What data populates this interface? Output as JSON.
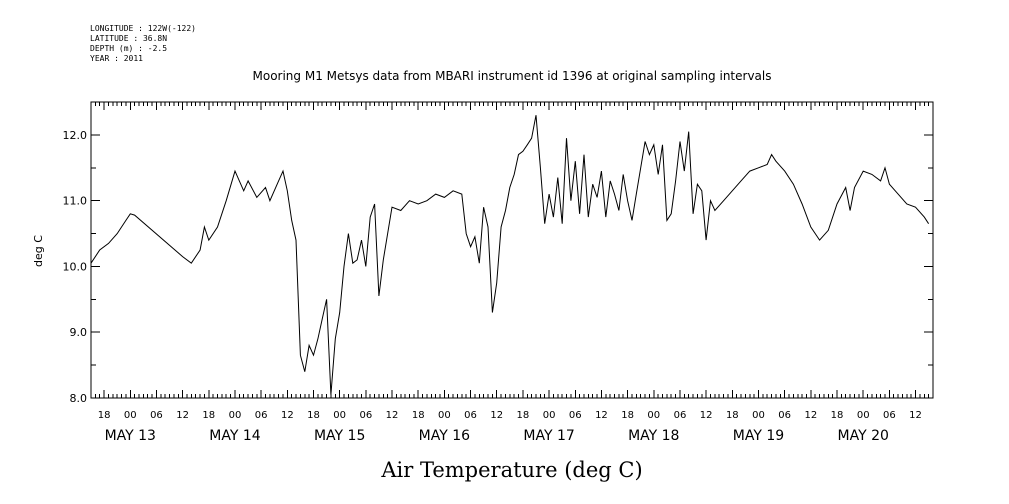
{
  "header": {
    "longitude": "LONGITUDE : 122W(-122)",
    "latitude": "LATITUDE : 36.8N",
    "depth": "DEPTH (m) : -2.5",
    "year": "YEAR : 2011"
  },
  "chart_data": {
    "type": "line",
    "title": "Mooring M1 Metsys data from MBARI instrument id 1396 at original sampling intervals",
    "xlabel": "Air Temperature (deg C)",
    "ylabel": "deg C",
    "ylim": [
      8.0,
      12.5
    ],
    "xlim": [
      "2011-05-12T15:00",
      "2011-05-20T16:00"
    ],
    "y_ticks": [
      "8.0",
      "9.0",
      "10.0",
      "11.0",
      "12.0"
    ],
    "x_hour_ticks": [
      {
        "t": "2011-05-12T18:00",
        "label": "18"
      },
      {
        "t": "2011-05-13T00:00",
        "label": "00"
      },
      {
        "t": "2011-05-13T06:00",
        "label": "06"
      },
      {
        "t": "2011-05-13T12:00",
        "label": "12"
      },
      {
        "t": "2011-05-13T18:00",
        "label": "18"
      },
      {
        "t": "2011-05-14T00:00",
        "label": "00"
      },
      {
        "t": "2011-05-14T06:00",
        "label": "06"
      },
      {
        "t": "2011-05-14T12:00",
        "label": "12"
      },
      {
        "t": "2011-05-14T18:00",
        "label": "18"
      },
      {
        "t": "2011-05-15T00:00",
        "label": "00"
      },
      {
        "t": "2011-05-15T06:00",
        "label": "06"
      },
      {
        "t": "2011-05-15T12:00",
        "label": "12"
      },
      {
        "t": "2011-05-15T18:00",
        "label": "18"
      },
      {
        "t": "2011-05-16T00:00",
        "label": "00"
      },
      {
        "t": "2011-05-16T06:00",
        "label": "06"
      },
      {
        "t": "2011-05-16T12:00",
        "label": "12"
      },
      {
        "t": "2011-05-16T18:00",
        "label": "18"
      },
      {
        "t": "2011-05-17T00:00",
        "label": "00"
      },
      {
        "t": "2011-05-17T06:00",
        "label": "06"
      },
      {
        "t": "2011-05-17T12:00",
        "label": "12"
      },
      {
        "t": "2011-05-17T18:00",
        "label": "18"
      },
      {
        "t": "2011-05-18T00:00",
        "label": "00"
      },
      {
        "t": "2011-05-18T06:00",
        "label": "06"
      },
      {
        "t": "2011-05-18T12:00",
        "label": "12"
      },
      {
        "t": "2011-05-18T18:00",
        "label": "18"
      },
      {
        "t": "2011-05-19T00:00",
        "label": "00"
      },
      {
        "t": "2011-05-19T06:00",
        "label": "06"
      },
      {
        "t": "2011-05-19T12:00",
        "label": "12"
      },
      {
        "t": "2011-05-19T18:00",
        "label": "18"
      },
      {
        "t": "2011-05-20T00:00",
        "label": "00"
      },
      {
        "t": "2011-05-20T06:00",
        "label": "06"
      },
      {
        "t": "2011-05-20T12:00",
        "label": "12"
      }
    ],
    "x_day_labels": [
      {
        "t": "2011-05-13T00:00",
        "label": "MAY 13"
      },
      {
        "t": "2011-05-14T00:00",
        "label": "MAY 14"
      },
      {
        "t": "2011-05-15T00:00",
        "label": "MAY 15"
      },
      {
        "t": "2011-05-16T00:00",
        "label": "MAY 16"
      },
      {
        "t": "2011-05-17T00:00",
        "label": "MAY 17"
      },
      {
        "t": "2011-05-18T00:00",
        "label": "MAY 18"
      },
      {
        "t": "2011-05-19T00:00",
        "label": "MAY 19"
      },
      {
        "t": "2011-05-20T00:00",
        "label": "MAY 20"
      }
    ],
    "grid": false,
    "series": [
      {
        "color": "#000000",
        "points": [
          [
            "2011-05-12T15:00",
            10.05
          ],
          [
            "2011-05-12T17:00",
            10.25
          ],
          [
            "2011-05-12T19:00",
            10.35
          ],
          [
            "2011-05-12T21:00",
            10.5
          ],
          [
            "2011-05-12T23:00",
            10.7
          ],
          [
            "2011-05-13T00:00",
            10.8
          ],
          [
            "2011-05-13T01:00",
            10.78
          ],
          [
            "2011-05-13T12:00",
            10.15
          ],
          [
            "2011-05-13T14:00",
            10.05
          ],
          [
            "2011-05-13T16:00",
            10.25
          ],
          [
            "2011-05-13T17:00",
            10.6
          ],
          [
            "2011-05-13T18:00",
            10.4
          ],
          [
            "2011-05-13T20:00",
            10.6
          ],
          [
            "2011-05-13T22:00",
            11.0
          ],
          [
            "2011-05-14T00:00",
            11.45
          ],
          [
            "2011-05-14T02:00",
            11.15
          ],
          [
            "2011-05-14T03:00",
            11.3
          ],
          [
            "2011-05-14T05:00",
            11.05
          ],
          [
            "2011-05-14T07:00",
            11.2
          ],
          [
            "2011-05-14T08:00",
            11.0
          ],
          [
            "2011-05-14T10:00",
            11.3
          ],
          [
            "2011-05-14T11:00",
            11.45
          ],
          [
            "2011-05-14T12:00",
            11.15
          ],
          [
            "2011-05-14T13:00",
            10.7
          ],
          [
            "2011-05-14T14:00",
            10.4
          ],
          [
            "2011-05-14T15:00",
            8.65
          ],
          [
            "2011-05-14T16:00",
            8.4
          ],
          [
            "2011-05-14T17:00",
            8.8
          ],
          [
            "2011-05-14T18:00",
            8.65
          ],
          [
            "2011-05-14T19:00",
            8.9
          ],
          [
            "2011-05-14T20:00",
            9.2
          ],
          [
            "2011-05-14T21:00",
            9.5
          ],
          [
            "2011-05-14T22:00",
            8.05
          ],
          [
            "2011-05-14T23:00",
            8.9
          ],
          [
            "2011-05-15T00:00",
            9.3
          ],
          [
            "2011-05-15T01:00",
            10.0
          ],
          [
            "2011-05-15T02:00",
            10.5
          ],
          [
            "2011-05-15T03:00",
            10.05
          ],
          [
            "2011-05-15T04:00",
            10.1
          ],
          [
            "2011-05-15T05:00",
            10.4
          ],
          [
            "2011-05-15T06:00",
            10.0
          ],
          [
            "2011-05-15T07:00",
            10.75
          ],
          [
            "2011-05-15T08:00",
            10.95
          ],
          [
            "2011-05-15T09:00",
            9.55
          ],
          [
            "2011-05-15T10:00",
            10.1
          ],
          [
            "2011-05-15T12:00",
            10.9
          ],
          [
            "2011-05-15T14:00",
            10.85
          ],
          [
            "2011-05-15T16:00",
            11.0
          ],
          [
            "2011-05-15T18:00",
            10.95
          ],
          [
            "2011-05-15T20:00",
            11.0
          ],
          [
            "2011-05-15T22:00",
            11.1
          ],
          [
            "2011-05-16T00:00",
            11.05
          ],
          [
            "2011-05-16T02:00",
            11.15
          ],
          [
            "2011-05-16T04:00",
            11.1
          ],
          [
            "2011-05-16T05:00",
            10.5
          ],
          [
            "2011-05-16T06:00",
            10.3
          ],
          [
            "2011-05-16T07:00",
            10.45
          ],
          [
            "2011-05-16T08:00",
            10.05
          ],
          [
            "2011-05-16T09:00",
            10.9
          ],
          [
            "2011-05-16T10:00",
            10.6
          ],
          [
            "2011-05-16T11:00",
            9.3
          ],
          [
            "2011-05-16T12:00",
            9.75
          ],
          [
            "2011-05-16T13:00",
            10.6
          ],
          [
            "2011-05-16T14:00",
            10.85
          ],
          [
            "2011-05-16T15:00",
            11.2
          ],
          [
            "2011-05-16T16:00",
            11.4
          ],
          [
            "2011-05-16T17:00",
            11.7
          ],
          [
            "2011-05-16T18:00",
            11.75
          ],
          [
            "2011-05-16T19:00",
            11.85
          ],
          [
            "2011-05-16T20:00",
            11.95
          ],
          [
            "2011-05-16T21:00",
            12.3
          ],
          [
            "2011-05-16T22:00",
            11.5
          ],
          [
            "2011-05-16T23:00",
            10.65
          ],
          [
            "2011-05-17T00:00",
            11.1
          ],
          [
            "2011-05-17T01:00",
            10.75
          ],
          [
            "2011-05-17T02:00",
            11.35
          ],
          [
            "2011-05-17T03:00",
            10.65
          ],
          [
            "2011-05-17T04:00",
            11.95
          ],
          [
            "2011-05-17T05:00",
            11.0
          ],
          [
            "2011-05-17T06:00",
            11.6
          ],
          [
            "2011-05-17T07:00",
            10.8
          ],
          [
            "2011-05-17T08:00",
            11.7
          ],
          [
            "2011-05-17T09:00",
            10.75
          ],
          [
            "2011-05-17T10:00",
            11.25
          ],
          [
            "2011-05-17T11:00",
            11.05
          ],
          [
            "2011-05-17T12:00",
            11.45
          ],
          [
            "2011-05-17T13:00",
            10.75
          ],
          [
            "2011-05-17T14:00",
            11.3
          ],
          [
            "2011-05-17T15:00",
            11.1
          ],
          [
            "2011-05-17T16:00",
            10.85
          ],
          [
            "2011-05-17T17:00",
            11.4
          ],
          [
            "2011-05-17T18:00",
            11.0
          ],
          [
            "2011-05-17T19:00",
            10.7
          ],
          [
            "2011-05-17T20:00",
            11.1
          ],
          [
            "2011-05-17T21:00",
            11.5
          ],
          [
            "2011-05-17T22:00",
            11.9
          ],
          [
            "2011-05-17T23:00",
            11.7
          ],
          [
            "2011-05-18T00:00",
            11.85
          ],
          [
            "2011-05-18T01:00",
            11.4
          ],
          [
            "2011-05-18T02:00",
            11.85
          ],
          [
            "2011-05-18T03:00",
            10.7
          ],
          [
            "2011-05-18T04:00",
            10.8
          ],
          [
            "2011-05-18T05:00",
            11.3
          ],
          [
            "2011-05-18T06:00",
            11.9
          ],
          [
            "2011-05-18T07:00",
            11.45
          ],
          [
            "2011-05-18T08:00",
            12.05
          ],
          [
            "2011-05-18T09:00",
            10.8
          ],
          [
            "2011-05-18T10:00",
            11.25
          ],
          [
            "2011-05-18T11:00",
            11.15
          ],
          [
            "2011-05-18T12:00",
            10.4
          ],
          [
            "2011-05-18T13:00",
            11.0
          ],
          [
            "2011-05-18T14:00",
            10.85
          ],
          [
            "2011-05-18T16:00",
            11.0
          ],
          [
            "2011-05-18T18:00",
            11.15
          ],
          [
            "2011-05-18T20:00",
            11.3
          ],
          [
            "2011-05-18T22:00",
            11.45
          ],
          [
            "2011-05-19T00:00",
            11.5
          ],
          [
            "2011-05-19T02:00",
            11.55
          ],
          [
            "2011-05-19T03:00",
            11.7
          ],
          [
            "2011-05-19T04:00",
            11.6
          ],
          [
            "2011-05-19T06:00",
            11.45
          ],
          [
            "2011-05-19T08:00",
            11.25
          ],
          [
            "2011-05-19T10:00",
            10.95
          ],
          [
            "2011-05-19T12:00",
            10.6
          ],
          [
            "2011-05-19T14:00",
            10.4
          ],
          [
            "2011-05-19T16:00",
            10.55
          ],
          [
            "2011-05-19T18:00",
            10.95
          ],
          [
            "2011-05-19T20:00",
            11.2
          ],
          [
            "2011-05-19T21:00",
            10.85
          ],
          [
            "2011-05-19T22:00",
            11.2
          ],
          [
            "2011-05-20T00:00",
            11.45
          ],
          [
            "2011-05-20T02:00",
            11.4
          ],
          [
            "2011-05-20T04:00",
            11.3
          ],
          [
            "2011-05-20T05:00",
            11.5
          ],
          [
            "2011-05-20T06:00",
            11.25
          ],
          [
            "2011-05-20T08:00",
            11.1
          ],
          [
            "2011-05-20T10:00",
            10.95
          ],
          [
            "2011-05-20T12:00",
            10.9
          ],
          [
            "2011-05-20T14:00",
            10.75
          ],
          [
            "2011-05-20T15:00",
            10.65
          ]
        ]
      }
    ]
  }
}
